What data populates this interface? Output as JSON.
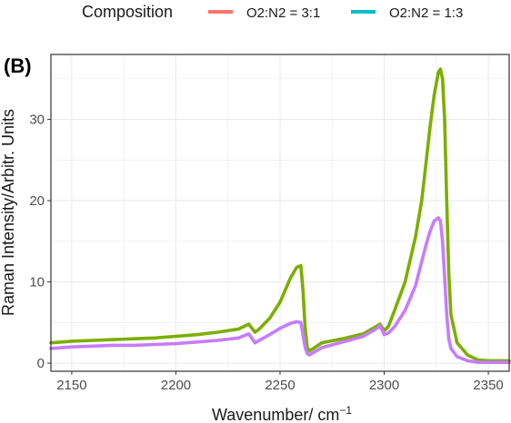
{
  "chart_data": {
    "type": "line",
    "panel_label": "(B)",
    "xlabel": "Wavenumber/ cm",
    "xlabel_superscript": "−1",
    "ylabel": "Raman Intensity/Arbitr. Units",
    "xlim": [
      2140,
      2360
    ],
    "ylim": [
      -1,
      38
    ],
    "x_ticks": [
      2150,
      2200,
      2250,
      2300,
      2350
    ],
    "y_ticks": [
      0,
      10,
      20,
      30
    ],
    "grid": true,
    "legend": {
      "title": "Composition",
      "position": "top",
      "entries": [
        {
          "label": "O2:N2 = 3:1",
          "color": "#f8766d"
        },
        {
          "label": "O2:N2 = 1:3",
          "color": "#00bfc4"
        }
      ]
    },
    "series": [
      {
        "color": "#7cae00",
        "x": [
          2140,
          2150,
          2160,
          2170,
          2180,
          2190,
          2200,
          2210,
          2220,
          2230,
          2235,
          2238,
          2240,
          2245,
          2250,
          2255,
          2258,
          2260,
          2261,
          2262,
          2263,
          2264,
          2266,
          2270,
          2280,
          2290,
          2296,
          2298,
          2300,
          2302,
          2305,
          2310,
          2315,
          2318,
          2320,
          2322,
          2324,
          2326,
          2327,
          2328,
          2329,
          2330,
          2331,
          2332,
          2335,
          2340,
          2345,
          2350,
          2355,
          2360
        ],
        "y": [
          2.5,
          2.7,
          2.8,
          2.9,
          3.0,
          3.1,
          3.3,
          3.5,
          3.8,
          4.2,
          4.8,
          3.8,
          4.2,
          5.5,
          7.5,
          10.5,
          11.8,
          12.0,
          9.0,
          4.5,
          2.0,
          1.5,
          1.8,
          2.5,
          3.0,
          3.6,
          4.5,
          4.8,
          4.0,
          4.5,
          6.5,
          10.0,
          15.5,
          20.0,
          24.5,
          29.0,
          33.0,
          35.8,
          36.2,
          35.0,
          30.0,
          20.0,
          11.0,
          6.0,
          2.5,
          1.0,
          0.4,
          0.3,
          0.3,
          0.3
        ]
      },
      {
        "color": "#c77cff",
        "x": [
          2140,
          2150,
          2160,
          2170,
          2180,
          2190,
          2200,
          2210,
          2220,
          2230,
          2235,
          2238,
          2240,
          2245,
          2250,
          2255,
          2258,
          2260,
          2261,
          2262,
          2263,
          2264,
          2266,
          2270,
          2280,
          2290,
          2296,
          2298,
          2300,
          2302,
          2305,
          2310,
          2315,
          2318,
          2320,
          2322,
          2324,
          2326,
          2327,
          2328,
          2329,
          2330,
          2331,
          2332,
          2335,
          2340,
          2345,
          2350,
          2355,
          2360
        ],
        "y": [
          1.8,
          2.0,
          2.1,
          2.2,
          2.2,
          2.3,
          2.4,
          2.6,
          2.8,
          3.1,
          3.6,
          2.5,
          2.8,
          3.5,
          4.3,
          4.9,
          5.1,
          5.0,
          3.5,
          2.0,
          1.2,
          1.0,
          1.3,
          1.9,
          2.6,
          3.3,
          4.2,
          4.6,
          3.5,
          3.7,
          4.5,
          6.5,
          9.5,
          12.5,
          14.5,
          16.2,
          17.5,
          17.9,
          17.5,
          15.0,
          10.5,
          6.0,
          3.0,
          1.8,
          0.8,
          0.3,
          0.1,
          0.1,
          0.1,
          0.1
        ]
      }
    ]
  }
}
